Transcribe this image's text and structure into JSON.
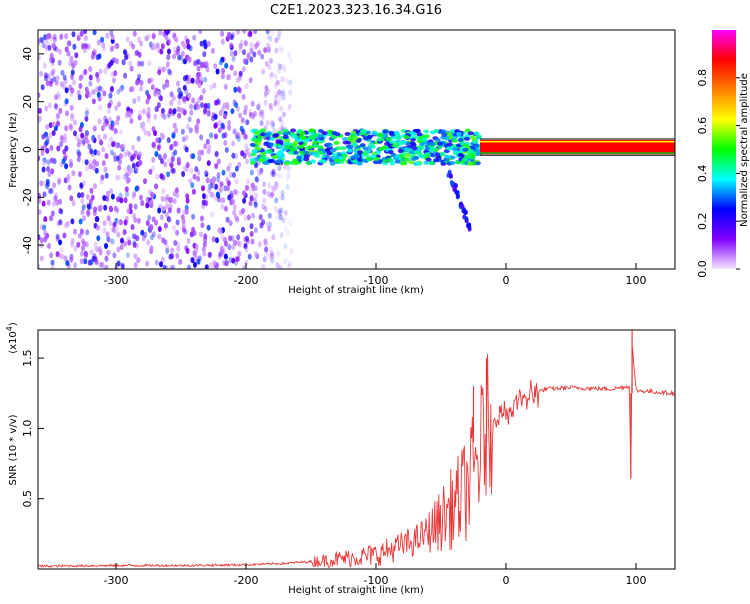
{
  "figure": {
    "title": "C2E1.2023.323.16.34.G16"
  },
  "chart_data": [
    {
      "type": "heatmap",
      "xlabel": "Height of straight line (km)",
      "ylabel": "Frequency (Hz)",
      "xlim": [
        -360,
        130
      ],
      "ylim": [
        -50,
        50
      ],
      "xticks": [
        -300,
        -200,
        -100,
        0,
        100
      ],
      "yticks": [
        -40,
        -20,
        0,
        20,
        40
      ],
      "regions": [
        {
          "name": "noise",
          "x_range": [
            -360,
            -165
          ],
          "y_range": [
            -50,
            50
          ],
          "amplitude_range": [
            0.05,
            0.3
          ]
        },
        {
          "name": "band",
          "x_range": [
            -195,
            -20
          ],
          "y_range": [
            -6,
            8
          ],
          "amplitude_range": [
            0.2,
            0.55
          ]
        },
        {
          "name": "tail",
          "x_range": [
            -45,
            -28
          ],
          "y_range": [
            -32,
            -8
          ],
          "amplitude_range": [
            0.15,
            0.3
          ]
        },
        {
          "name": "line",
          "x_range": [
            -20,
            130
          ],
          "y_range": [
            -2,
            4
          ],
          "amplitude_range": [
            0.8,
            1.0
          ]
        }
      ],
      "colorbar": {
        "label": "Normalized spectral amplitude",
        "range": [
          0,
          1
        ],
        "ticks": [
          "0.0",
          "0.2",
          "0.4",
          "0.6",
          "0.8"
        ],
        "colors": [
          "#f5e6ff",
          "#8000ff",
          "#0000ff",
          "#00ffff",
          "#00ff00",
          "#ffff00",
          "#ff8000",
          "#ff0000",
          "#ff00ff"
        ]
      },
      "grid": false
    },
    {
      "type": "line",
      "xlabel": "Height of straight line (km)",
      "ylabel": "SNR (10 * v/v)",
      "y_multiplier": "(x10",
      "y_multiplier_exp": "4",
      "y_multiplier_close": ")",
      "xlim": [
        -360,
        130
      ],
      "ylim": [
        0,
        1.7
      ],
      "xticks": [
        -300,
        -200,
        -100,
        0,
        100
      ],
      "yticks": [
        "0.5",
        "1.0",
        "1.5"
      ],
      "ytick_values": [
        0.5,
        1.0,
        1.5
      ],
      "series": [
        {
          "color": "#e83a3a",
          "x": [
            -360,
            -300,
            -250,
            -200,
            -170,
            -140,
            -120,
            -100,
            -85,
            -70,
            -55,
            -45,
            -35,
            -28,
            -22,
            -18,
            -15,
            -13,
            -10,
            -5,
            0,
            10,
            20,
            30,
            50,
            80,
            95,
            96,
            97,
            100,
            130
          ],
          "y": [
            0.02,
            0.025,
            0.025,
            0.03,
            0.04,
            0.06,
            0.08,
            0.1,
            0.15,
            0.2,
            0.3,
            0.4,
            0.5,
            0.62,
            0.75,
            0.9,
            1.0,
            1.05,
            1.08,
            1.1,
            1.12,
            1.18,
            1.24,
            1.28,
            1.29,
            1.28,
            1.3,
            0.65,
            1.6,
            1.27,
            1.25
          ]
        }
      ],
      "spikes": [
        {
          "x": -15,
          "y": 1.5
        },
        {
          "x": -25,
          "y": 1.3
        },
        {
          "x": 97,
          "y": 1.7
        },
        {
          "x": 96,
          "y": 0.65
        }
      ],
      "grid": false
    }
  ]
}
